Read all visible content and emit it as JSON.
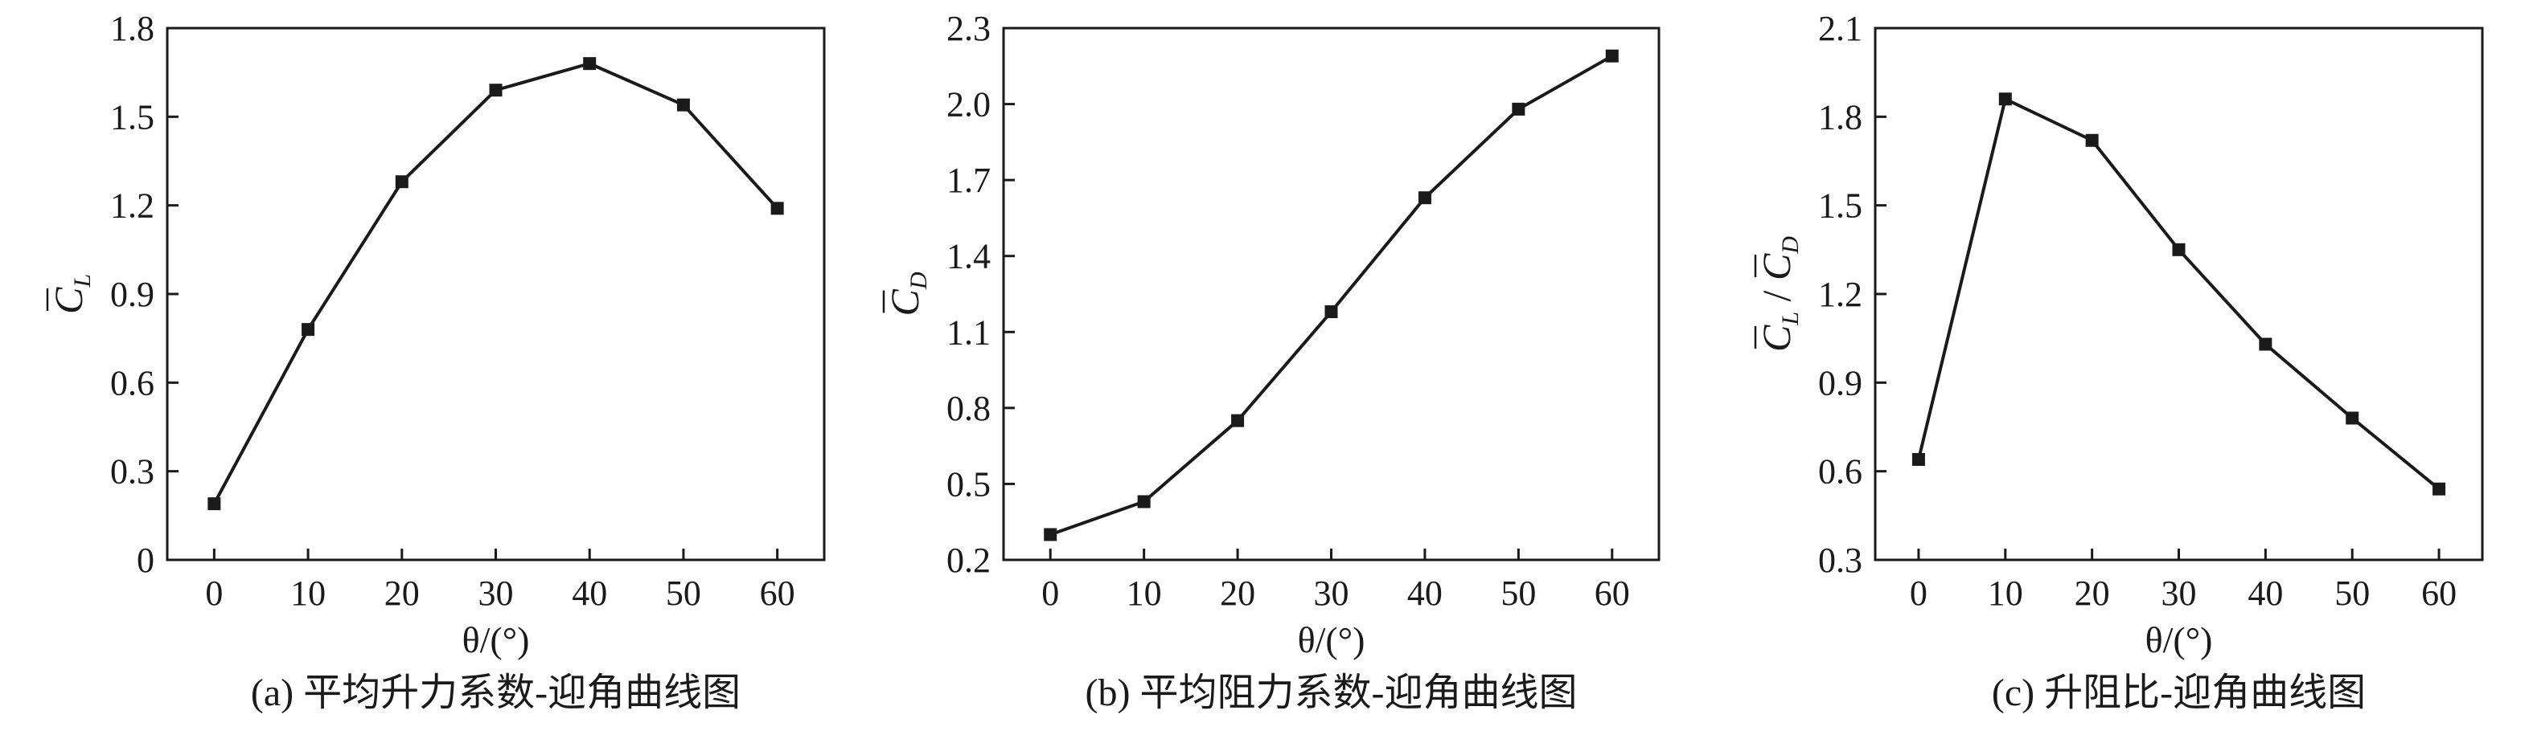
{
  "chart_data": [
    {
      "type": "line",
      "caption": "(a) 平均升力系数-迎角曲线图",
      "xlabel": "θ/(°)",
      "ylabel": "C̄L",
      "ylabel_parts": {
        "main": "C",
        "sub": "L"
      },
      "x": [
        0,
        10,
        20,
        30,
        40,
        50,
        60
      ],
      "series": [
        {
          "values": [
            0.19,
            0.78,
            1.28,
            1.59,
            1.68,
            1.54,
            1.19
          ]
        }
      ],
      "xlim": [
        -5,
        65
      ],
      "ylim": [
        0,
        1.8
      ],
      "xticks": [
        0,
        10,
        20,
        30,
        40,
        50,
        60
      ],
      "yticks": [
        0,
        0.3,
        0.6,
        0.9,
        1.2,
        1.5,
        1.8
      ],
      "ytick_labels": [
        "0",
        "0.3",
        "0.6",
        "0.9",
        "1.2",
        "1.5",
        "1.8"
      ],
      "marker": "square",
      "grid": false
    },
    {
      "type": "line",
      "caption": "(b) 平均阻力系数-迎角曲线图",
      "xlabel": "θ/(°)",
      "ylabel": "C̄D",
      "ylabel_parts": {
        "main": "C",
        "sub": "D"
      },
      "x": [
        0,
        10,
        20,
        30,
        40,
        50,
        60
      ],
      "series": [
        {
          "values": [
            0.3,
            0.43,
            0.75,
            1.18,
            1.63,
            1.98,
            2.19
          ]
        }
      ],
      "xlim": [
        -5,
        65
      ],
      "ylim": [
        0.2,
        2.3
      ],
      "xticks": [
        0,
        10,
        20,
        30,
        40,
        50,
        60
      ],
      "yticks": [
        0.2,
        0.5,
        0.8,
        1.1,
        1.4,
        1.7,
        2.0,
        2.3
      ],
      "ytick_labels": [
        "0.2",
        "0.5",
        "0.8",
        "1.1",
        "1.4",
        "1.7",
        "2.0",
        "2.3"
      ],
      "marker": "square",
      "grid": false
    },
    {
      "type": "line",
      "caption": "(c) 升阻比-迎角曲线图",
      "xlabel": "θ/(°)",
      "ylabel": "C̄L / C̄D",
      "ylabel_parts": {
        "main": "C",
        "sub": "L",
        "sep": " / ",
        "main2": "C",
        "sub2": "D"
      },
      "x": [
        0,
        10,
        20,
        30,
        40,
        50,
        60
      ],
      "series": [
        {
          "values": [
            0.64,
            1.86,
            1.72,
            1.35,
            1.03,
            0.78,
            0.54
          ]
        }
      ],
      "xlim": [
        -5,
        65
      ],
      "ylim": [
        0.3,
        2.1
      ],
      "xticks": [
        0,
        10,
        20,
        30,
        40,
        50,
        60
      ],
      "yticks": [
        0.3,
        0.6,
        0.9,
        1.2,
        1.5,
        1.8,
        2.1
      ],
      "ytick_labels": [
        "0.3",
        "0.6",
        "0.9",
        "1.2",
        "1.5",
        "1.8",
        "2.1"
      ],
      "marker": "square",
      "grid": false
    }
  ]
}
